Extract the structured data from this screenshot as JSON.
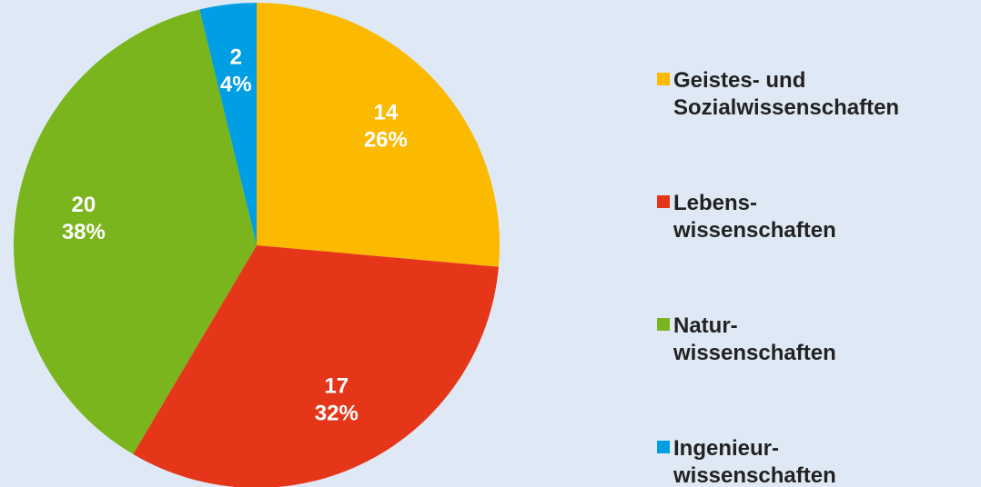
{
  "chart_data": {
    "type": "pie",
    "categories": [
      "Geistes- und\nSozialwissenschaften",
      "Lebens-\nwissenschaften",
      "Natur-\nwissenschaften",
      "Ingenieur-\nwissenschaften"
    ],
    "values": [
      14,
      17,
      20,
      2
    ],
    "percent_labels": [
      "26%",
      "32%",
      "38%",
      "4%"
    ],
    "colors": [
      "#fbb900",
      "#e5361a",
      "#7ab51d",
      "#009fe3"
    ],
    "legend": "right"
  }
}
